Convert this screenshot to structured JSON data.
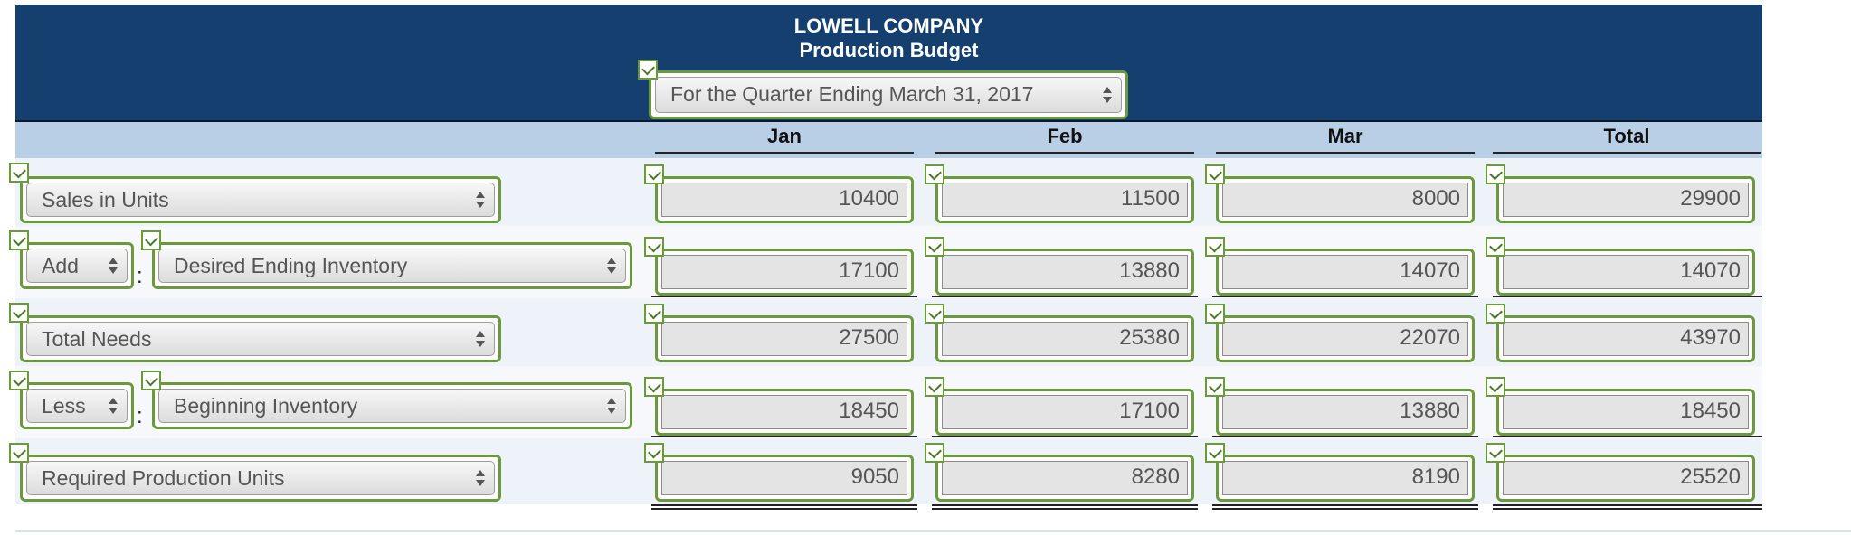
{
  "header": {
    "company": "LOWELL COMPANY",
    "title": "Production Budget",
    "period": "For the Quarter Ending March 31, 2017"
  },
  "columns": [
    "Jan",
    "Feb",
    "Mar",
    "Total"
  ],
  "rows": [
    {
      "prefix": "",
      "label": "Sales in Units",
      "values": [
        "10400",
        "11500",
        "8000",
        "29900"
      ]
    },
    {
      "prefix": "Add",
      "label": "Desired Ending Inventory",
      "values": [
        "17100",
        "13880",
        "14070",
        "14070"
      ]
    },
    {
      "prefix": "",
      "label": "Total Needs",
      "values": [
        "27500",
        "25380",
        "22070",
        "43970"
      ]
    },
    {
      "prefix": "Less",
      "label": "Beginning Inventory",
      "values": [
        "18450",
        "17100",
        "13880",
        "18450"
      ]
    },
    {
      "prefix": "",
      "label": "Required Production Units",
      "values": [
        "9050",
        "8280",
        "8190",
        "25520"
      ]
    }
  ],
  "colors": {
    "header_bg": "#143f6e",
    "column_header_bg": "#b8cfe5",
    "check_green": "#6a9a3c"
  }
}
